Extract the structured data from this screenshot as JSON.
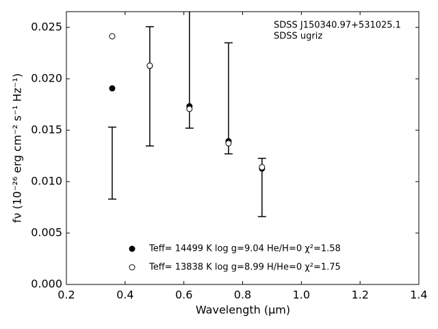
{
  "chart_data": {
    "type": "scatter",
    "annotation": [
      "SDSS J150340.97+531025.1",
      "SDSS ugriz"
    ],
    "xlabel": "Wavelength (μm)",
    "ylabel": "fν (10⁻²⁶ erg cm⁻² s⁻¹ Hz⁻¹)",
    "x": [
      0.356,
      0.484,
      0.619,
      0.752,
      0.866
    ],
    "series": [
      {
        "name": "Teff= 14499 K  log g=9.04  He/H=0  χ²=1.58",
        "color": "#000000",
        "filled": true,
        "values": [
          0.01907,
          0.02127,
          0.01733,
          0.01393,
          0.01127
        ]
      },
      {
        "name": "Teff= 13838 K  log g=8.99  H/He=0  χ²=1.75",
        "color": "#000000",
        "filled": false,
        "values": [
          0.02413,
          0.02127,
          0.01707,
          0.01373,
          0.0114
        ]
      }
    ],
    "errorbars": {
      "color": "#000000",
      "values": [
        0.0118,
        0.01927,
        0.0228,
        0.0181,
        0.00943
      ],
      "errors": [
        0.0035,
        0.0058,
        0.0076,
        0.0054,
        0.00283
      ]
    },
    "xlim": [
      0.2,
      1.4
    ],
    "xticks": [
      0.2,
      0.4,
      0.6,
      0.8,
      {
        "value": 1,
        "label": "1.0"
      },
      1.2,
      1.4
    ],
    "ylim": [
      0,
      0.02653
    ],
    "yticks": [
      {
        "value": 0,
        "label": "0.000"
      },
      0.005,
      {
        "value": 0.01,
        "label": "0.010"
      },
      0.015,
      {
        "value": 0.02,
        "label": "0.020"
      },
      0.025
    ],
    "grid": false
  }
}
